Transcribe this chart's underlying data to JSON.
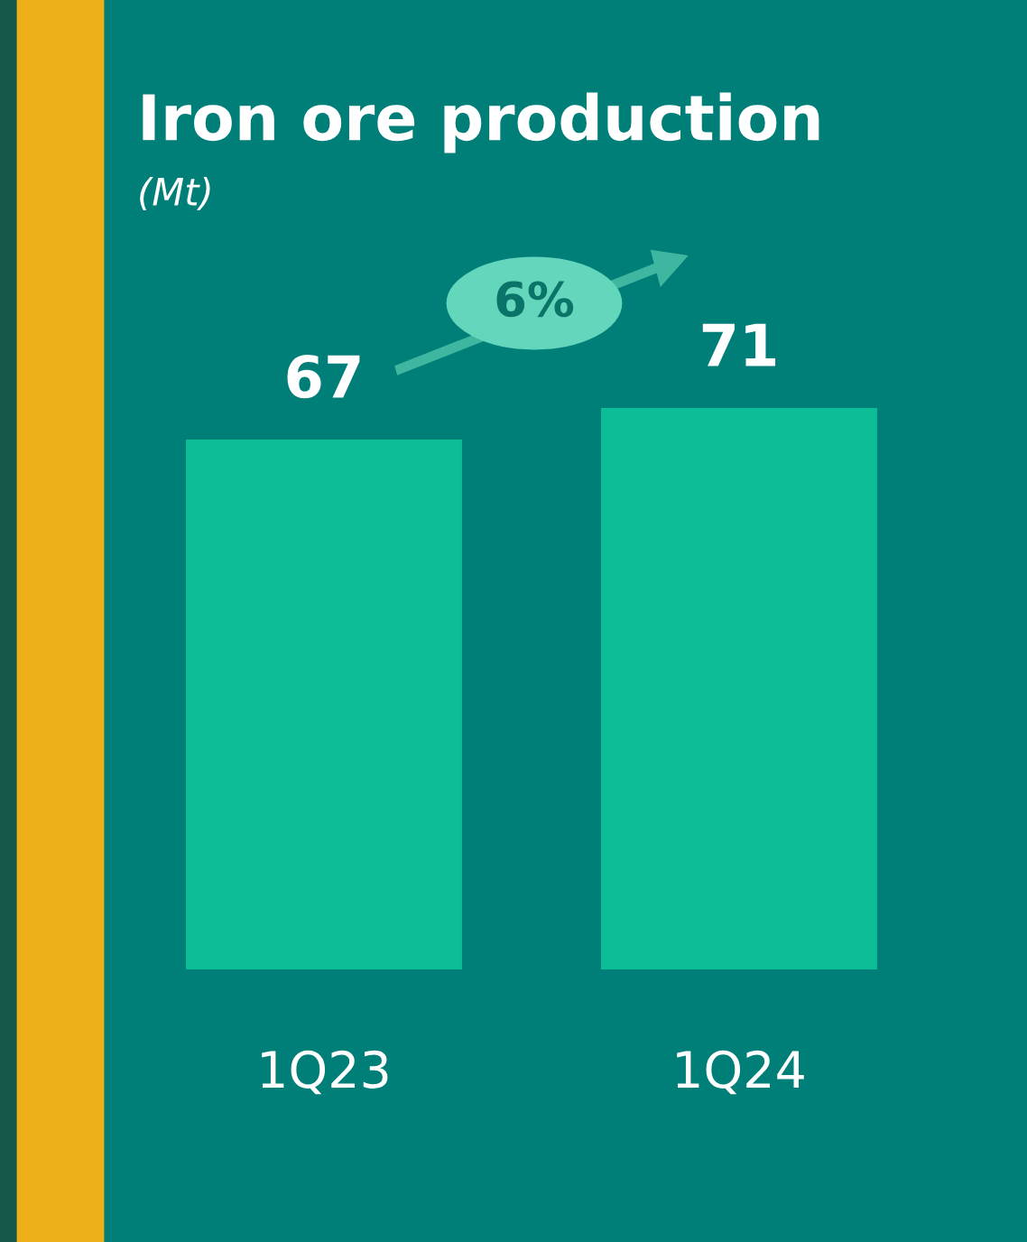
{
  "chart_data": {
    "type": "bar",
    "title": "Iron ore production",
    "subtitle": "(Mt)",
    "categories": [
      "1Q23",
      "1Q24"
    ],
    "values": [
      67,
      71
    ],
    "color": "#0dbd97",
    "data_labels": true,
    "annotations": [
      "6%"
    ]
  }
}
